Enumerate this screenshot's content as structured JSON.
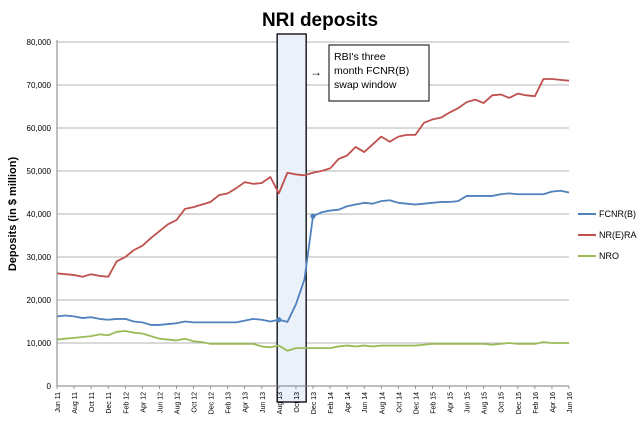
{
  "chart_data": {
    "type": "line",
    "title": "NRI deposits",
    "ylabel": "Deposits (in $ million)",
    "xlabel": "",
    "ylim": [
      0,
      80000
    ],
    "yticks": [
      0,
      10000,
      20000,
      30000,
      40000,
      50000,
      60000,
      70000,
      80000
    ],
    "ytick_labels": [
      "0",
      "10,000",
      "20,000",
      "30,000",
      "40,000",
      "50,000",
      "60,000",
      "70,000",
      "80,000"
    ],
    "grid": "horizontal",
    "legend_position": "right",
    "x": [
      "Jun 11",
      "Jul 11",
      "Aug 11",
      "Sep 11",
      "Oct 11",
      "Nov 11",
      "Dec 11",
      "Jan 12",
      "Feb 12",
      "Mar 12",
      "Apr 12",
      "May 12",
      "Jun 12",
      "Jul 12",
      "Aug 12",
      "Sep 12",
      "Oct 12",
      "Nov 12",
      "Dec 12",
      "Jan 13",
      "Feb 13",
      "Mar 13",
      "Apr 13",
      "May 13",
      "Jun 13",
      "Jul 13",
      "Aug 13",
      "Sep 13",
      "Oct 13",
      "Nov 13",
      "Dec 13",
      "Jan 14",
      "Feb 14",
      "Mar 14",
      "Apr 14",
      "May 14",
      "Jun 14",
      "Jul 14",
      "Aug 14",
      "Sep 14",
      "Oct 14",
      "Nov 14",
      "Dec 14",
      "Jan 15",
      "Feb 15",
      "Mar 15",
      "Apr 15",
      "May 15",
      "Jun 15",
      "Jul 15",
      "Aug 15",
      "Sep 15",
      "Oct 15",
      "Nov 15",
      "Dec 15",
      "Jan 16",
      "Feb 16",
      "Mar 16",
      "Apr 16",
      "May 16",
      "Jun 16"
    ],
    "x_tick_labels": [
      "Jun 11",
      "Aug 11",
      "Oct 11",
      "Dec 11",
      "Feb 12",
      "Apr 12",
      "Jun 12",
      "Aug 12",
      "Oct 12",
      "Dec 12",
      "Feb 13",
      "Apr 13",
      "Jun 13",
      "Aug 13",
      "Oct 13",
      "Dec 13",
      "Feb 14",
      "Apr 14",
      "Jun 14",
      "Aug 14",
      "Oct 14",
      "Dec 14",
      "Feb 15",
      "Apr 15",
      "Jun 15",
      "Aug 15",
      "Oct 15",
      "Dec 15",
      "Feb 16",
      "Apr 16",
      "Jun 16"
    ],
    "series": [
      {
        "name": "FCNR(B)",
        "color": "#4f81bd",
        "values": [
          16200,
          16400,
          16200,
          15800,
          16000,
          15600,
          15400,
          15600,
          15600,
          15000,
          14800,
          14200,
          14200,
          14400,
          14600,
          15000,
          14800,
          14800,
          14800,
          14800,
          14800,
          14800,
          15200,
          15600,
          15400,
          15000,
          15400,
          14900,
          19000,
          24800,
          39500,
          40400,
          40800,
          41000,
          41800,
          42200,
          42600,
          42400,
          43000,
          43200,
          42600,
          42400,
          42200,
          42400,
          42600,
          42800,
          42800,
          43000,
          44200,
          44200,
          44200,
          44200,
          44600,
          44800,
          44600,
          44600,
          44600,
          44600,
          45200,
          45400,
          45000
        ]
      },
      {
        "name": "NR(E)RA",
        "color": "#c0504d",
        "values": [
          26200,
          26000,
          25800,
          25400,
          26000,
          25600,
          25400,
          29000,
          30000,
          31600,
          32600,
          34400,
          36000,
          37600,
          38600,
          41200,
          41600,
          42200,
          42800,
          44400,
          44800,
          46000,
          47400,
          47000,
          47200,
          48600,
          44800,
          49600,
          49200,
          49000,
          49600,
          50000,
          50600,
          52800,
          53600,
          55600,
          54400,
          56200,
          58000,
          56800,
          58000,
          58400,
          58400,
          61200,
          62000,
          62400,
          63600,
          64600,
          66000,
          66600,
          65800,
          67600,
          67800,
          67000,
          68000,
          67600,
          67400,
          71400,
          71400,
          71200,
          71000
        ]
      },
      {
        "name": "NRO",
        "color": "#9bbb59",
        "values": [
          10800,
          11000,
          11200,
          11400,
          11600,
          12000,
          11800,
          12600,
          12800,
          12400,
          12200,
          11600,
          11000,
          10800,
          10600,
          11000,
          10400,
          10200,
          9800,
          9800,
          9800,
          9800,
          9800,
          9800,
          9200,
          9000,
          9400,
          8200,
          8800,
          8800,
          8800,
          8800,
          8800,
          9200,
          9400,
          9200,
          9400,
          9200,
          9400,
          9400,
          9400,
          9400,
          9400,
          9600,
          9800,
          9800,
          9800,
          9800,
          9800,
          9800,
          9800,
          9600,
          9800,
          10000,
          9800,
          9800,
          9800,
          10200,
          10000,
          10000,
          10000
        ]
      }
    ],
    "highlight": {
      "from": "Aug 13",
      "to": "Nov 13",
      "fill": "#eaf1fb"
    },
    "annotation": {
      "text_lines": [
        "RBI's three",
        "month FCNR(B)",
        "swap window"
      ],
      "arrow": "→"
    },
    "markers": [
      {
        "series": "FCNR(B)",
        "x": "Aug 13"
      },
      {
        "series": "FCNR(B)",
        "x": "Dec 13"
      }
    ]
  }
}
